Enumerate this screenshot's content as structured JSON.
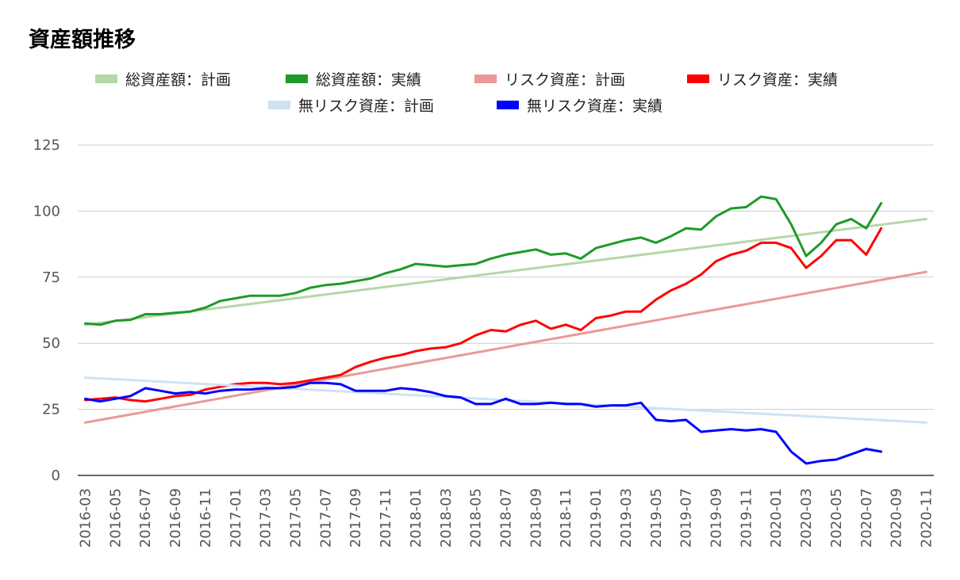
{
  "chart_data": {
    "type": "line",
    "title": "資産額推移",
    "xlabel": "",
    "ylabel": "",
    "ylim": [
      0,
      125
    ],
    "yticks": [
      0,
      25,
      50,
      75,
      100,
      125
    ],
    "grid": true,
    "legend_position": "top",
    "x_start": "2016-03",
    "x_end": "2020-12",
    "x_tick_labels": [
      "2016-03",
      "2016-05",
      "2016-07",
      "2016-09",
      "2016-11",
      "2017-01",
      "2017-03",
      "2017-05",
      "2017-07",
      "2017-09",
      "2017-11",
      "2018-01",
      "2018-03",
      "2018-05",
      "2018-07",
      "2018-09",
      "2018-11",
      "2019-01",
      "2019-03",
      "2019-05",
      "2019-07",
      "2019-09",
      "2019-11",
      "2020-01",
      "2020-03",
      "2020-05",
      "2020-07",
      "2020-09",
      "2020-11"
    ],
    "series": [
      {
        "name": "総資産額：計画",
        "color": "#b6d7a8",
        "start_index": 0,
        "values": [
          57,
          97
        ]
      },
      {
        "name": "総資産額：実績",
        "color": "#1e9a28",
        "start_index": 0,
        "values": [
          57.5,
          57,
          58.5,
          58.8,
          61,
          61,
          61.5,
          62,
          63.5,
          66,
          67,
          68,
          68,
          68,
          69,
          71,
          72,
          72.5,
          73.5,
          74.5,
          76.5,
          78,
          80,
          79.5,
          79,
          79.5,
          80,
          82,
          83.5,
          84.5,
          85.5,
          83.5,
          84,
          82,
          86,
          87.5,
          89,
          90,
          88,
          90.5,
          93.5,
          93,
          98,
          101,
          101.5,
          105.5,
          104.5,
          95,
          83,
          88,
          95,
          97,
          93.5,
          103
        ]
      },
      {
        "name": "リスク資産：計画",
        "color": "#ea9999",
        "start_index": 0,
        "values": [
          20,
          77
        ]
      },
      {
        "name": "リスク資産：実績",
        "color": "#ff0000",
        "start_index": 0,
        "values": [
          28.5,
          29,
          29.5,
          28.5,
          28,
          29,
          30,
          30.5,
          32.5,
          33.5,
          34.5,
          35,
          35,
          34.5,
          35,
          36,
          37,
          38,
          41,
          43,
          44.5,
          45.5,
          47,
          48,
          48.5,
          50,
          53,
          55,
          54.5,
          57,
          58.5,
          55.5,
          57,
          55,
          59.5,
          60.5,
          62,
          62,
          66.5,
          70,
          72.5,
          76,
          81,
          83.5,
          85,
          88,
          88,
          86,
          78.5,
          83,
          89,
          89,
          83.5,
          93.5
        ]
      },
      {
        "name": "無リスク資産：計画",
        "color": "#cfe2f3",
        "start_index": 0,
        "values": [
          37,
          20
        ]
      },
      {
        "name": "無リスク資産：実績",
        "color": "#0000ff",
        "start_index": 0,
        "values": [
          29,
          28,
          29,
          30,
          33,
          32,
          31,
          31.5,
          31,
          32,
          32.5,
          32.5,
          33,
          33,
          33.5,
          35,
          35,
          34.5,
          32,
          32,
          32,
          33,
          32.5,
          31.5,
          30,
          29.5,
          27,
          27,
          29,
          27,
          27,
          27.5,
          27,
          27,
          26,
          26.5,
          26.5,
          27.5,
          21,
          20.5,
          21,
          16.5,
          17,
          17.5,
          17,
          17.5,
          16.5,
          9,
          4.5,
          5.5,
          6,
          8,
          10,
          9
        ]
      }
    ]
  }
}
